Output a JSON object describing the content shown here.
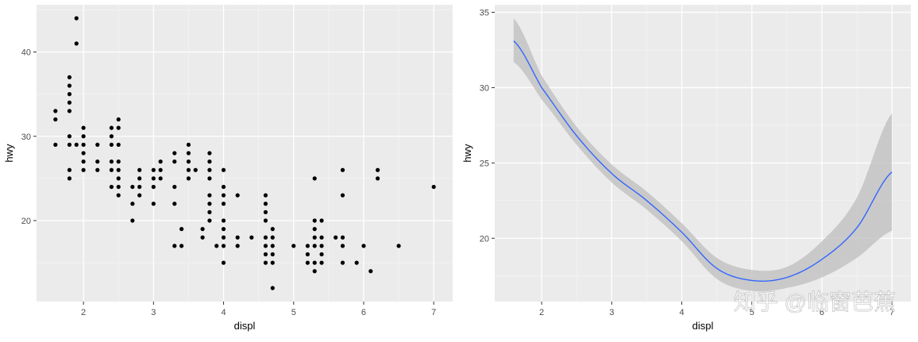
{
  "watermark": "知乎 @临窗芭蕉",
  "chart_data": [
    {
      "type": "scatter",
      "xlabel": "displ",
      "ylabel": "hwy",
      "xlim": [
        1.33,
        7.27
      ],
      "ylim": [
        10.4,
        45.6
      ],
      "xticks": [
        2,
        3,
        4,
        5,
        6,
        7
      ],
      "yticks": [
        20,
        30,
        40
      ],
      "grid": true,
      "point_color": "#000000",
      "points": [
        [
          1.6,
          33
        ],
        [
          1.6,
          32
        ],
        [
          1.6,
          29
        ],
        [
          1.8,
          37
        ],
        [
          1.8,
          36
        ],
        [
          1.8,
          35
        ],
        [
          1.8,
          34
        ],
        [
          1.8,
          33
        ],
        [
          1.8,
          30
        ],
        [
          1.8,
          29
        ],
        [
          1.8,
          26
        ],
        [
          1.8,
          25
        ],
        [
          1.9,
          44
        ],
        [
          1.9,
          41
        ],
        [
          1.9,
          29
        ],
        [
          2.0,
          31
        ],
        [
          2.0,
          30
        ],
        [
          2.0,
          29
        ],
        [
          2.0,
          28
        ],
        [
          2.0,
          27
        ],
        [
          2.0,
          26
        ],
        [
          2.2,
          29
        ],
        [
          2.2,
          27
        ],
        [
          2.2,
          26
        ],
        [
          2.4,
          31
        ],
        [
          2.4,
          30
        ],
        [
          2.4,
          29
        ],
        [
          2.4,
          27
        ],
        [
          2.4,
          26
        ],
        [
          2.4,
          24
        ],
        [
          2.5,
          32
        ],
        [
          2.5,
          31
        ],
        [
          2.5,
          29
        ],
        [
          2.5,
          27
        ],
        [
          2.5,
          26
        ],
        [
          2.5,
          25
        ],
        [
          2.5,
          24
        ],
        [
          2.5,
          23
        ],
        [
          2.7,
          24
        ],
        [
          2.7,
          22
        ],
        [
          2.7,
          20
        ],
        [
          2.8,
          26
        ],
        [
          2.8,
          25
        ],
        [
          2.8,
          24
        ],
        [
          2.8,
          23
        ],
        [
          3.0,
          26
        ],
        [
          3.0,
          25
        ],
        [
          3.0,
          24
        ],
        [
          3.0,
          22
        ],
        [
          3.1,
          27
        ],
        [
          3.1,
          26
        ],
        [
          3.1,
          25
        ],
        [
          3.3,
          28
        ],
        [
          3.3,
          27
        ],
        [
          3.3,
          24
        ],
        [
          3.3,
          22
        ],
        [
          3.3,
          17
        ],
        [
          3.4,
          19
        ],
        [
          3.4,
          17
        ],
        [
          3.5,
          29
        ],
        [
          3.5,
          28
        ],
        [
          3.5,
          27
        ],
        [
          3.5,
          26
        ],
        [
          3.5,
          25
        ],
        [
          3.6,
          26
        ],
        [
          3.7,
          19
        ],
        [
          3.7,
          18
        ],
        [
          3.8,
          28
        ],
        [
          3.8,
          27
        ],
        [
          3.8,
          26
        ],
        [
          3.8,
          25
        ],
        [
          3.8,
          23
        ],
        [
          3.8,
          22
        ],
        [
          3.8,
          21
        ],
        [
          3.8,
          20
        ],
        [
          3.9,
          17
        ],
        [
          4.0,
          26
        ],
        [
          4.0,
          24
        ],
        [
          4.0,
          23
        ],
        [
          4.0,
          22
        ],
        [
          4.0,
          20
        ],
        [
          4.0,
          19
        ],
        [
          4.0,
          18
        ],
        [
          4.0,
          17
        ],
        [
          4.0,
          15
        ],
        [
          4.2,
          23
        ],
        [
          4.2,
          18
        ],
        [
          4.2,
          17
        ],
        [
          4.4,
          18
        ],
        [
          4.6,
          23
        ],
        [
          4.6,
          22
        ],
        [
          4.6,
          21
        ],
        [
          4.6,
          20
        ],
        [
          4.6,
          18
        ],
        [
          4.6,
          17
        ],
        [
          4.6,
          16
        ],
        [
          4.6,
          15
        ],
        [
          4.7,
          19
        ],
        [
          4.7,
          18
        ],
        [
          4.7,
          17
        ],
        [
          4.7,
          16
        ],
        [
          4.7,
          15
        ],
        [
          4.7,
          12
        ],
        [
          5.0,
          17
        ],
        [
          5.2,
          17
        ],
        [
          5.2,
          16
        ],
        [
          5.2,
          15
        ],
        [
          5.3,
          25
        ],
        [
          5.3,
          20
        ],
        [
          5.3,
          19
        ],
        [
          5.3,
          18
        ],
        [
          5.3,
          17
        ],
        [
          5.3,
          15
        ],
        [
          5.3,
          14
        ],
        [
          5.4,
          20
        ],
        [
          5.4,
          18
        ],
        [
          5.4,
          17
        ],
        [
          5.4,
          16
        ],
        [
          5.4,
          15
        ],
        [
          5.6,
          18
        ],
        [
          5.7,
          26
        ],
        [
          5.7,
          23
        ],
        [
          5.7,
          18
        ],
        [
          5.7,
          17
        ],
        [
          5.7,
          15
        ],
        [
          5.9,
          15
        ],
        [
          6.0,
          17
        ],
        [
          6.1,
          14
        ],
        [
          6.2,
          26
        ],
        [
          6.2,
          25
        ],
        [
          6.5,
          17
        ],
        [
          7.0,
          24
        ]
      ]
    },
    {
      "type": "line",
      "subtype": "smooth",
      "xlabel": "displ",
      "ylabel": "hwy",
      "xlim": [
        1.33,
        7.27
      ],
      "ylim": [
        15.8,
        35.5
      ],
      "xticks": [
        2,
        3,
        4,
        5,
        6,
        7
      ],
      "yticks": [
        20,
        25,
        30,
        35
      ],
      "grid": true,
      "line_color": "#3366FF",
      "ribbon_color": "#BDBDBD",
      "x": [
        1.6,
        2.0,
        2.5,
        3.0,
        3.5,
        4.0,
        4.5,
        5.0,
        5.5,
        6.0,
        6.5,
        7.0
      ],
      "y": [
        33.1,
        30.0,
        26.8,
        24.3,
        22.5,
        20.4,
        18.0,
        17.2,
        17.4,
        18.6,
        20.7,
        24.4
      ],
      "ymin": [
        31.7,
        29.2,
        26.2,
        23.7,
        21.9,
        19.8,
        17.3,
        16.5,
        16.7,
        17.4,
        18.7,
        20.5
      ],
      "ymax": [
        34.6,
        30.8,
        27.4,
        24.9,
        23.1,
        21.0,
        18.7,
        17.9,
        18.1,
        19.8,
        22.7,
        28.3
      ]
    }
  ]
}
